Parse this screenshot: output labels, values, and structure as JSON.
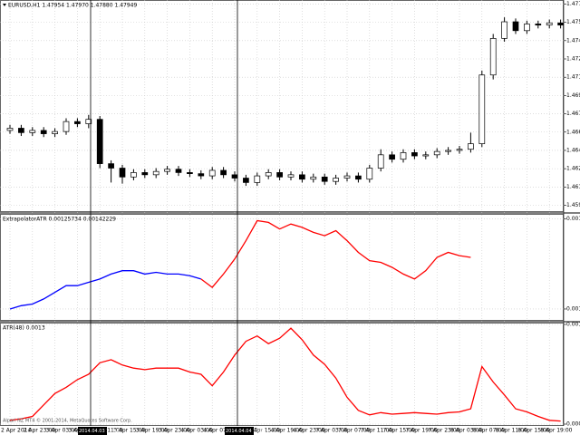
{
  "chart_data": [
    {
      "type": "candlestick",
      "title": "EURUSD,H1 1.47954 1.47970 1.47880 1.47949",
      "open": [
        1.4662,
        1.4664,
        1.466,
        1.4662,
        1.4659,
        1.4661,
        1.467,
        1.4668,
        1.4672,
        1.4632,
        1.4628,
        1.462,
        1.4624,
        1.4622,
        1.4625,
        1.4627,
        1.4624,
        1.4623,
        1.4621,
        1.4626,
        1.4622,
        1.4619,
        1.4615,
        1.4621,
        1.4624,
        1.462,
        1.4622,
        1.4618,
        1.462,
        1.4616,
        1.4619,
        1.4621,
        1.4618,
        1.4628,
        1.464,
        1.4636,
        1.4642,
        1.4639,
        1.464,
        1.4643,
        1.4644,
        1.4645,
        1.465,
        1.4712,
        1.4745,
        1.476,
        1.4752,
        1.4758,
        1.4757,
        1.4759
      ],
      "high": [
        1.4667,
        1.4667,
        1.4665,
        1.4665,
        1.4664,
        1.4673,
        1.4673,
        1.4676,
        1.4675,
        1.4635,
        1.4631,
        1.4627,
        1.4627,
        1.4628,
        1.463,
        1.463,
        1.4627,
        1.4626,
        1.4629,
        1.4629,
        1.4625,
        1.4622,
        1.4624,
        1.4627,
        1.4627,
        1.4625,
        1.4625,
        1.4623,
        1.4623,
        1.4622,
        1.4624,
        1.4624,
        1.4631,
        1.4645,
        1.4643,
        1.4645,
        1.4645,
        1.4643,
        1.4646,
        1.4647,
        1.4648,
        1.466,
        1.4716,
        1.4749,
        1.4764,
        1.4763,
        1.4761,
        1.4761,
        1.4762,
        1.4762
      ],
      "low": [
        1.4659,
        1.4657,
        1.4657,
        1.4656,
        1.4656,
        1.4658,
        1.4665,
        1.4664,
        1.4628,
        1.4615,
        1.4614,
        1.4617,
        1.4619,
        1.4619,
        1.4622,
        1.4621,
        1.462,
        1.4618,
        1.4618,
        1.4619,
        1.4616,
        1.4612,
        1.4612,
        1.4618,
        1.4617,
        1.4617,
        1.4615,
        1.4615,
        1.4613,
        1.4613,
        1.4616,
        1.4615,
        1.4615,
        1.4625,
        1.4633,
        1.4633,
        1.4636,
        1.4636,
        1.4637,
        1.464,
        1.4641,
        1.4642,
        1.4647,
        1.4708,
        1.4742,
        1.4749,
        1.4749,
        1.4754,
        1.4754,
        1.4754
      ],
      "close": [
        1.4664,
        1.466,
        1.4662,
        1.4659,
        1.4661,
        1.467,
        1.4668,
        1.4672,
        1.4632,
        1.4628,
        1.462,
        1.4624,
        1.4622,
        1.4625,
        1.4627,
        1.4624,
        1.4623,
        1.4621,
        1.4626,
        1.4622,
        1.4619,
        1.4615,
        1.4621,
        1.4624,
        1.462,
        1.4622,
        1.4618,
        1.462,
        1.4616,
        1.4619,
        1.4621,
        1.4618,
        1.4628,
        1.464,
        1.4636,
        1.4642,
        1.4639,
        1.464,
        1.4643,
        1.4644,
        1.4645,
        1.465,
        1.4712,
        1.4745,
        1.476,
        1.4752,
        1.4758,
        1.4757,
        1.4759,
        1.4757
      ],
      "up_color": "#ffffff",
      "down_color": "#000000",
      "ylim": [
        1.459,
        1.4778
      ],
      "yticks": [
        {
          "value": 1.4776,
          "label": "1.47760"
        },
        {
          "value": 1.47595,
          "label": "1.47595"
        },
        {
          "value": 1.4743,
          "label": "1.47430"
        },
        {
          "value": 1.47265,
          "label": "1.47265"
        },
        {
          "value": 1.471,
          "label": "1.47100"
        },
        {
          "value": 1.46935,
          "label": "1.46935"
        },
        {
          "value": 1.4677,
          "label": "1.46770"
        },
        {
          "value": 1.46605,
          "label": "1.46605"
        },
        {
          "value": 1.4644,
          "label": "1.46440"
        },
        {
          "value": 1.46275,
          "label": "1.46275"
        },
        {
          "value": 1.4611,
          "label": "1.46110"
        },
        {
          "value": 1.45945,
          "label": "1.45945"
        }
      ],
      "grid": true
    },
    {
      "type": "line",
      "title": "ExtrapolatorATR 0.00125734 0.00142229",
      "series": [
        {
          "color": "#0000ff",
          "values": [
            0.00114,
            0.00116,
            0.00117,
            0.0012,
            0.00124,
            0.00128,
            0.00128,
            0.0013,
            0.00132,
            0.00135,
            0.00137,
            0.00137,
            0.00135,
            0.00136,
            0.00135,
            0.00135,
            0.00134,
            0.00132,
            null,
            null,
            null,
            null,
            null,
            null,
            null,
            null,
            null,
            null,
            null,
            null,
            null,
            null,
            null,
            null,
            null,
            null,
            null,
            null,
            null,
            null,
            null,
            null,
            null,
            null,
            null,
            null,
            null,
            null,
            null,
            null
          ]
        },
        {
          "color": "#ff0000",
          "values": [
            null,
            null,
            null,
            null,
            null,
            null,
            null,
            null,
            null,
            null,
            null,
            null,
            null,
            null,
            null,
            null,
            null,
            0.00132,
            0.00127,
            0.00135,
            0.00144,
            0.00155,
            0.00167,
            0.00166,
            0.00162,
            0.00165,
            0.00163,
            0.0016,
            0.00158,
            0.00161,
            0.00155,
            0.00148,
            0.00143,
            0.00142,
            0.00139,
            0.00135,
            0.00132,
            0.00137,
            0.00145,
            0.00148,
            0.00146,
            0.00145,
            null,
            null,
            null,
            null,
            null,
            null,
            null,
            null
          ]
        }
      ],
      "ylim": [
        0.00108,
        0.0017
      ],
      "yticks": [
        0.00168,
        0.00114
      ],
      "grid": true
    },
    {
      "type": "line",
      "title": "ATR(48) 0.0013",
      "series": [
        {
          "color": "#ff0000",
          "values": [
            0.00025,
            0.00027,
            0.0003,
            0.00045,
            0.0006,
            0.00068,
            0.00078,
            0.00085,
            0.001,
            0.00104,
            0.00097,
            0.00093,
            0.00091,
            0.00093,
            0.00093,
            0.00093,
            0.00088,
            0.00085,
            0.0007,
            0.00088,
            0.0011,
            0.00128,
            0.00135,
            0.00125,
            0.00132,
            0.00145,
            0.0013,
            0.0011,
            0.00098,
            0.0008,
            0.00055,
            0.00038,
            0.00032,
            0.00035,
            0.00033,
            0.00034,
            0.00035,
            0.00034,
            0.00033,
            0.00035,
            0.00036,
            0.0004,
            0.00095,
            0.00075,
            0.00058,
            0.0004,
            0.00036,
            0.0003,
            0.00025,
            0.00024
          ]
        }
      ],
      "ylim": [
        0.0002,
        0.0015
      ],
      "yticks": [
        0.0015,
        0.0002
      ],
      "grid": true,
      "categories": [
        "2 Apr 2014",
        null,
        "2 Apr 23:00",
        null,
        "3 Apr 03:00",
        null,
        "3 Apr 07:00",
        null,
        "3 Apr 11:00",
        null,
        "3 Apr 15:00",
        null,
        "3 Apr 19:00",
        null,
        "3 Apr 23:00",
        null,
        "4 Apr 03:00",
        null,
        "4 Apr 07:00",
        null,
        "4 Apr 11:00",
        null,
        "4 Apr 15:00",
        null,
        "4 Apr 19:00",
        null,
        "4 Apr 23:00",
        null,
        "7 Apr 03:00",
        null,
        "7 Apr 07:00",
        null,
        "7 Apr 11:00",
        null,
        "7 Apr 15:00",
        null,
        "7 Apr 19:00",
        null,
        "7 Apr 23:00",
        null,
        "8 Apr 03:00",
        null,
        "8 Apr 07:00",
        null,
        "8 Apr 11:00",
        null,
        "8 Apr 15:00",
        null,
        "8 Apr 19:00",
        null
      ],
      "markers": [
        "2014.04.03 11:00",
        "2014.04.04 15:00"
      ],
      "watermark": "Alpari NZ MT4 © 2001-2014, MetaQuotes Software Corp."
    }
  ]
}
